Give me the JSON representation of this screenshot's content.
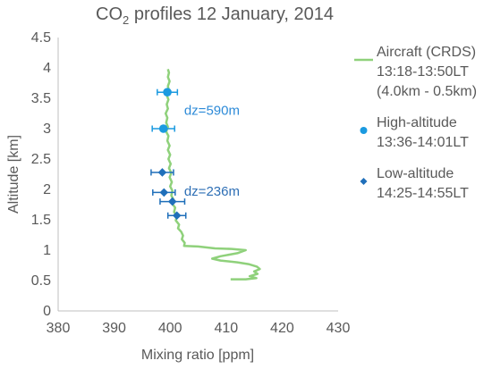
{
  "chart_data": {
    "type": "scatter",
    "title_main": "CO",
    "title_sub": "2",
    "title_rest": " profiles  12 January, 2014",
    "xlabel": "Mixing ratio [ppm]",
    "ylabel": "Altitude [km]",
    "xlim": [
      380,
      430
    ],
    "ylim": [
      0,
      4.5
    ],
    "xticks": [
      "380",
      "390",
      "400",
      "410",
      "420",
      "430"
    ],
    "yticks": [
      "0",
      "0.5",
      "1",
      "1.5",
      "2",
      "2.5",
      "3",
      "3.5",
      "4",
      "4.5"
    ],
    "grid": false,
    "annotations": [
      {
        "text": "dz=590m",
        "x": 402.5,
        "y": 3.3,
        "color": "#2e8bd8"
      },
      {
        "text": "dz=236m",
        "x": 402.5,
        "y": 1.97,
        "color": "#2e6fb5"
      }
    ],
    "series": [
      {
        "name": "Aircraft (CRDS)",
        "legend_lines": [
          "Aircraft (CRDS)",
          "13:18-13:50LT",
          "(4.0km - 0.5km)"
        ],
        "kind": "line",
        "color": "#8fd17b",
        "points": [
          [
            399.6,
            3.98
          ],
          [
            399.8,
            3.92
          ],
          [
            399.6,
            3.85
          ],
          [
            399.9,
            3.78
          ],
          [
            399.6,
            3.7
          ],
          [
            399.8,
            3.62
          ],
          [
            399.4,
            3.55
          ],
          [
            399.7,
            3.48
          ],
          [
            399.4,
            3.4
          ],
          [
            399.6,
            3.33
          ],
          [
            399.2,
            3.25
          ],
          [
            399.5,
            3.18
          ],
          [
            399.3,
            3.1
          ],
          [
            399.6,
            3.03
          ],
          [
            399.3,
            2.95
          ],
          [
            399.7,
            2.88
          ],
          [
            399.5,
            2.8
          ],
          [
            399.9,
            2.72
          ],
          [
            399.6,
            2.65
          ],
          [
            400.0,
            2.57
          ],
          [
            399.7,
            2.5
          ],
          [
            400.1,
            2.42
          ],
          [
            399.8,
            2.35
          ],
          [
            400.2,
            2.27
          ],
          [
            399.9,
            2.2
          ],
          [
            400.3,
            2.12
          ],
          [
            400.0,
            2.05
          ],
          [
            400.4,
            1.98
          ],
          [
            400.2,
            1.9
          ],
          [
            400.6,
            1.83
          ],
          [
            400.4,
            1.76
          ],
          [
            400.9,
            1.7
          ],
          [
            400.7,
            1.63
          ],
          [
            401.2,
            1.56
          ],
          [
            401.0,
            1.49
          ],
          [
            401.6,
            1.42
          ],
          [
            401.4,
            1.36
          ],
          [
            402.0,
            1.3
          ],
          [
            402.3,
            1.24
          ],
          [
            402.1,
            1.18
          ],
          [
            402.6,
            1.12
          ],
          [
            402.5,
            1.07
          ],
          [
            405,
            1.06
          ],
          [
            408,
            1.03
          ],
          [
            411,
            1.02
          ],
          [
            413.5,
            1.0
          ],
          [
            412,
            0.95
          ],
          [
            409,
            0.9
          ],
          [
            407.5,
            0.86
          ],
          [
            409,
            0.83
          ],
          [
            412,
            0.8
          ],
          [
            414,
            0.77
          ],
          [
            415.5,
            0.73
          ],
          [
            416,
            0.69
          ],
          [
            415,
            0.65
          ],
          [
            415.6,
            0.61
          ],
          [
            414.2,
            0.57
          ],
          [
            415.4,
            0.54
          ],
          [
            413.5,
            0.52
          ],
          [
            411.5,
            0.52
          ],
          [
            410.8,
            0.52
          ]
        ]
      },
      {
        "name": "High-altitude",
        "legend_lines": [
          "High-altitude",
          "13:36-14:01LT"
        ],
        "kind": "points",
        "marker": "circle",
        "color": "#1b9ae0",
        "points": [
          [
            399.5,
            3.6
          ],
          [
            398.8,
            3.0
          ]
        ],
        "xerr": [
          1.8,
          2.0
        ]
      },
      {
        "name": "Low-altitude",
        "legend_lines": [
          "Low-altitude",
          "14:25-14:55LT"
        ],
        "kind": "points",
        "marker": "diamond",
        "color": "#1f6fba",
        "points": [
          [
            398.6,
            2.28
          ],
          [
            398.9,
            1.95
          ],
          [
            400.4,
            1.8
          ],
          [
            401.2,
            1.57
          ]
        ],
        "xerr": [
          2.0,
          2.0,
          2.2,
          1.6
        ]
      }
    ]
  }
}
